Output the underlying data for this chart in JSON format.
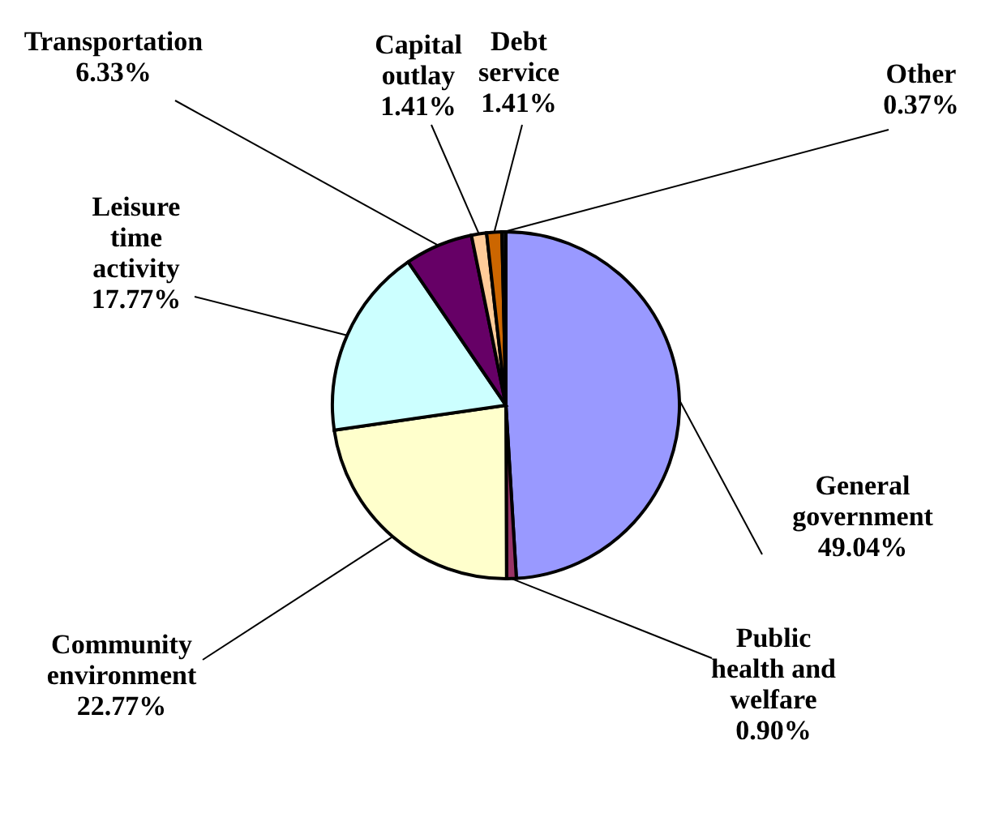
{
  "chart_data": {
    "type": "pie",
    "categories": [
      "General government",
      "Public health and welfare",
      "Community environment",
      "Leisure time activity",
      "Transportation",
      "Capital outlay",
      "Debt service",
      "Other"
    ],
    "values": [
      49.04,
      0.9,
      22.77,
      17.77,
      6.33,
      1.41,
      1.41,
      0.37
    ],
    "value_labels": [
      "49.04%",
      "0.90%",
      "22.77%",
      "17.77%",
      "6.33%",
      "1.41%",
      "1.41%",
      "0.37%"
    ],
    "colors": [
      "#9999ff",
      "#993366",
      "#ffffcc",
      "#ccffff",
      "#660066",
      "#ffcc99",
      "#cc6600",
      "#1a1a1a"
    ],
    "legend": false
  }
}
